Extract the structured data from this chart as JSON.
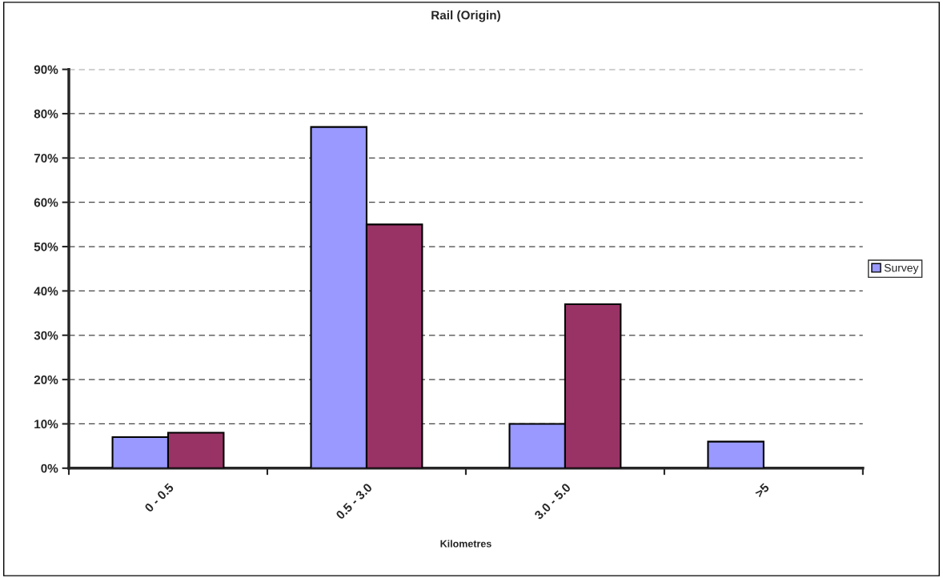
{
  "chart_data": {
    "type": "bar",
    "title": "Rail (Origin)",
    "xlabel": "Kilometres",
    "categories": [
      "0 - 0.5",
      "0.5 - 3.0",
      "3.0 - 5.0",
      ">5"
    ],
    "series": [
      {
        "name": "Survey",
        "color": "#9999ff",
        "values": [
          7,
          77,
          10,
          6
        ]
      },
      {
        "color": "#993366",
        "values": [
          8,
          55,
          37,
          null
        ]
      }
    ],
    "ylim": [
      0,
      90
    ],
    "yticks": [
      {
        "value": 0,
        "label": "0%"
      },
      {
        "value": 10,
        "label": "10%"
      },
      {
        "value": 20,
        "label": "20%"
      },
      {
        "value": 30,
        "label": "30%"
      },
      {
        "value": 40,
        "label": "40%"
      },
      {
        "value": 50,
        "label": "50%"
      },
      {
        "value": 60,
        "label": "60%"
      },
      {
        "value": 70,
        "label": "70%"
      },
      {
        "value": 80,
        "label": "80%"
      },
      {
        "value": 90,
        "label": "90%"
      }
    ],
    "grid": "y",
    "legend": "right"
  }
}
